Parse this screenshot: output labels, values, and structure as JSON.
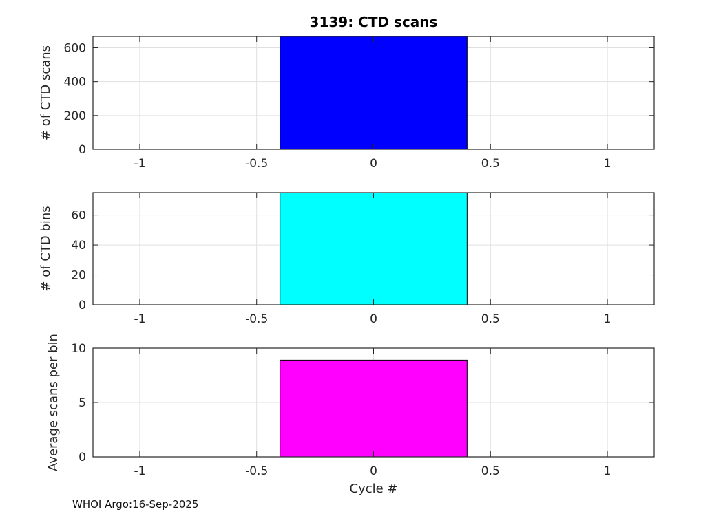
{
  "figure": {
    "footer": "WHOI Argo:16-Sep-2025",
    "background": "#ffffff"
  },
  "chart_data": {
    "type": "bar",
    "title": "3139: CTD scans",
    "xlabel": "Cycle #",
    "x": [
      0
    ],
    "bar_half_width": 0.4,
    "xlim": [
      -1.2,
      1.2
    ],
    "xtick_values": [
      -1,
      -0.5,
      0,
      0.5,
      1
    ],
    "xtick_labels": [
      "-1",
      "-0.5",
      "0",
      "0.5",
      "1"
    ],
    "grid": true,
    "legend": "none",
    "colors": {
      "axis": "#262626",
      "grid": "#e0e0e0",
      "bar_edge": "#000000",
      "tick_label": "#262626",
      "title": "#000000"
    },
    "subplots": [
      {
        "name": "ctd-scans",
        "ylabel": "# of CTD scans",
        "bar_color": "#0000ff",
        "values": [
          667
        ],
        "ylim": [
          0,
          667
        ],
        "yticks": [
          0,
          200,
          400,
          600
        ]
      },
      {
        "name": "ctd-bins",
        "ylabel": "# of CTD bins",
        "bar_color": "#00ffff",
        "values": [
          75
        ],
        "ylim": [
          0,
          75
        ],
        "yticks": [
          0,
          20,
          40,
          60
        ]
      },
      {
        "name": "avg-scans-per-bin",
        "ylabel": "Average scans per bin",
        "bar_color": "#ff00ff",
        "values": [
          8.9
        ],
        "ylim": [
          0,
          10
        ],
        "yticks": [
          0,
          5,
          10
        ]
      }
    ]
  }
}
